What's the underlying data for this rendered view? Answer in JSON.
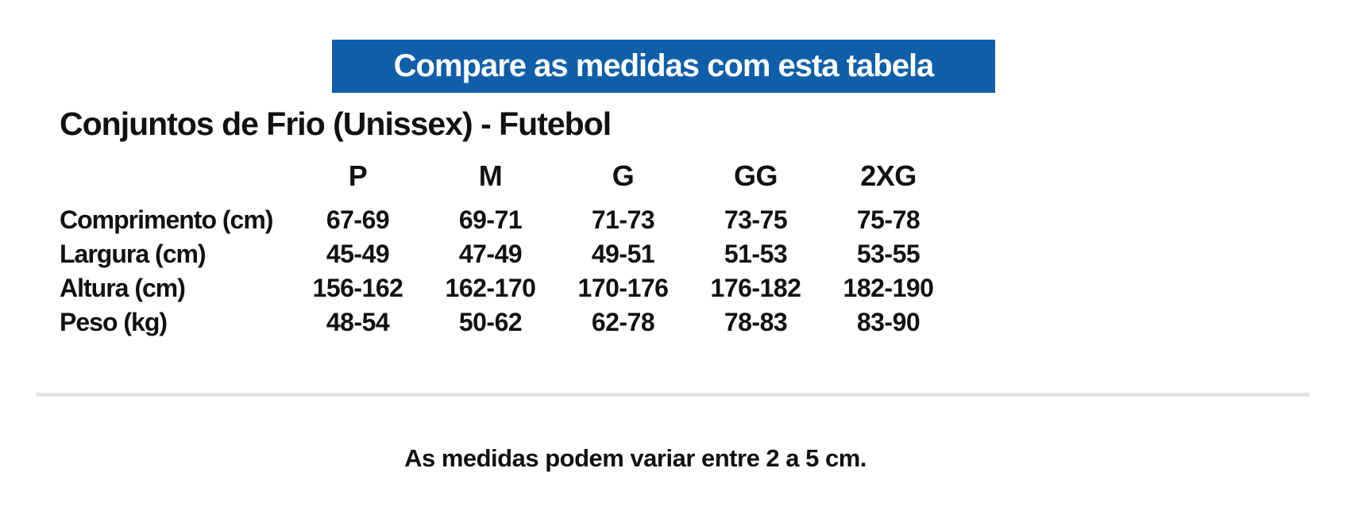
{
  "banner": {
    "label": "Compare as medidas com esta tabela",
    "bg_color": "#0f5ea9",
    "text_color": "#ffffff"
  },
  "title": "Conjuntos de Frio (Unissex) - Futebol",
  "size_table": {
    "columns": [
      "P",
      "M",
      "G",
      "GG",
      "2XG"
    ],
    "rows": [
      {
        "label": "Comprimento (cm)",
        "values": [
          "67-69",
          "69-71",
          "71-73",
          "73-75",
          "75-78"
        ]
      },
      {
        "label": "Largura (cm)",
        "values": [
          "45-49",
          "47-49",
          "49-51",
          "51-53",
          "53-55"
        ]
      },
      {
        "label": "Altura (cm)",
        "values": [
          "156-162",
          "162-170",
          "170-176",
          "176-182",
          "182-190"
        ]
      },
      {
        "label": "Peso (kg)",
        "values": [
          "48-54",
          "50-62",
          "62-78",
          "78-83",
          "83-90"
        ]
      }
    ]
  },
  "divider": {
    "color": "#e4e4e4"
  },
  "footer": {
    "note": "As medidas podem variar entre 2 a 5 cm."
  },
  "colors": {
    "text": "#111111",
    "background": "#ffffff"
  }
}
